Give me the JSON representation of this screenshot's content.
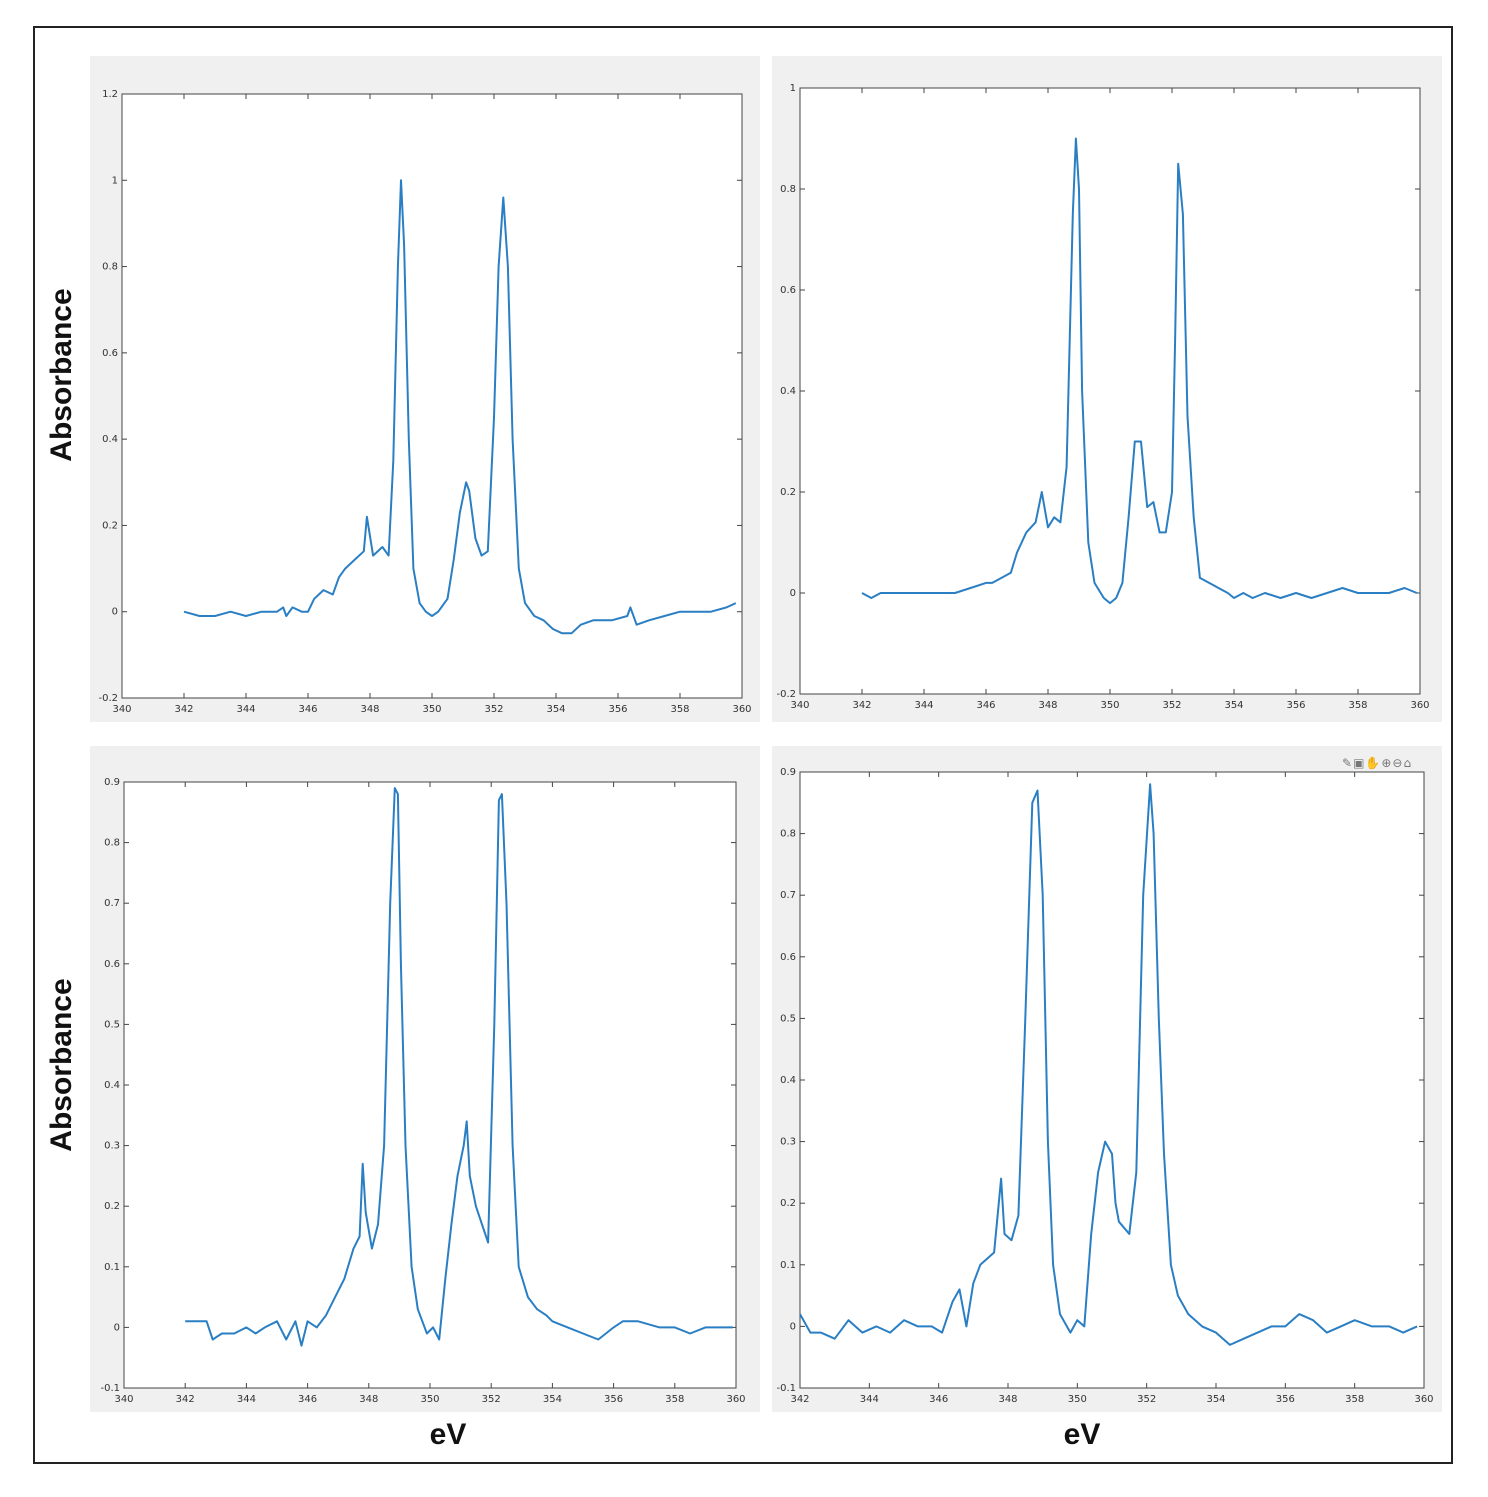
{
  "labels": {
    "y_top": "Absorbance",
    "y_bottom": "Absorbance",
    "x_left": "eV",
    "x_right": "eV"
  },
  "toolbar_icons": [
    "pencil-icon",
    "data-cursor-icon",
    "pan-hand-icon",
    "zoom-in-icon",
    "zoom-out-icon",
    "home-icon"
  ],
  "colors": {
    "line": "#2a7fc4",
    "panel_bg": "#f0f0f0",
    "axes_text": "#333333"
  },
  "chart_data": [
    {
      "type": "line",
      "xlim": [
        340,
        360
      ],
      "ylim": [
        -0.2,
        1.2
      ],
      "xticks": [
        "340",
        "342",
        "344",
        "346",
        "348",
        "350",
        "352",
        "354",
        "356",
        "358",
        "360"
      ],
      "yticks": [
        "-0.2",
        "0",
        "0.2",
        "0.4",
        "0.6",
        "0.8",
        "1",
        "1.2"
      ],
      "ytick_values": [
        -0.2,
        0,
        0.2,
        0.4,
        0.6,
        0.8,
        1,
        1.2
      ],
      "series": [
        {
          "x": [
            342,
            342.5,
            343,
            343.5,
            344,
            344.5,
            345,
            345.2,
            345.3,
            345.5,
            345.8,
            346,
            346.2,
            346.5,
            346.8,
            347,
            347.2,
            347.5,
            347.8,
            347.9,
            348.1,
            348.4,
            348.6,
            348.75,
            348.9,
            349,
            349.1,
            349.25,
            349.4,
            349.6,
            349.8,
            350,
            350.2,
            350.5,
            350.7,
            350.9,
            351.1,
            351.2,
            351.4,
            351.6,
            351.8,
            352,
            352.15,
            352.3,
            352.45,
            352.6,
            352.8,
            353,
            353.3,
            353.6,
            353.9,
            354.2,
            354.5,
            354.8,
            355.2,
            355.8,
            356.3,
            356.4,
            356.6,
            357,
            357.5,
            358,
            358.5,
            359,
            359.5,
            359.8
          ],
          "y": [
            0,
            -0.01,
            -0.01,
            0.0,
            -0.01,
            0.0,
            0.0,
            0.01,
            -0.01,
            0.01,
            0.0,
            0.0,
            0.03,
            0.05,
            0.04,
            0.08,
            0.1,
            0.12,
            0.14,
            0.22,
            0.13,
            0.15,
            0.13,
            0.35,
            0.8,
            1.0,
            0.85,
            0.4,
            0.1,
            0.02,
            0.0,
            -0.01,
            0.0,
            0.03,
            0.12,
            0.23,
            0.3,
            0.28,
            0.17,
            0.13,
            0.14,
            0.45,
            0.8,
            0.96,
            0.8,
            0.4,
            0.1,
            0.02,
            -0.01,
            -0.02,
            -0.04,
            -0.05,
            -0.05,
            -0.03,
            -0.02,
            -0.02,
            -0.01,
            0.01,
            -0.03,
            -0.02,
            -0.01,
            0.0,
            0.0,
            0.0,
            0.01,
            0.02
          ]
        }
      ]
    },
    {
      "type": "line",
      "xlim": [
        340,
        360
      ],
      "ylim": [
        -0.2,
        1
      ],
      "xticks": [
        "340",
        "342",
        "344",
        "346",
        "348",
        "350",
        "352",
        "354",
        "356",
        "358",
        "360"
      ],
      "yticks": [
        "-0.2",
        "0",
        "0.2",
        "0.4",
        "0.6",
        "0.8",
        "1"
      ],
      "ytick_values": [
        -0.2,
        0,
        0.2,
        0.4,
        0.6,
        0.8,
        1
      ],
      "series": [
        {
          "x": [
            342,
            342.3,
            342.6,
            343,
            343.5,
            344,
            344.5,
            345,
            345.5,
            346,
            346.2,
            346.5,
            346.8,
            347,
            347.3,
            347.6,
            347.8,
            348,
            348.2,
            348.4,
            348.6,
            348.8,
            348.9,
            349,
            349.1,
            349.3,
            349.5,
            349.8,
            350,
            350.2,
            350.4,
            350.6,
            350.8,
            351,
            351.2,
            351.4,
            351.6,
            351.8,
            352,
            352.1,
            352.2,
            352.35,
            352.5,
            352.7,
            352.9,
            353.2,
            353.5,
            353.8,
            354,
            354.3,
            354.6,
            355,
            355.5,
            356,
            356.5,
            357,
            357.5,
            358,
            358.5,
            359,
            359.5,
            359.9
          ],
          "y": [
            0,
            -0.01,
            0.0,
            0.0,
            0.0,
            0.0,
            0.0,
            0.0,
            0.01,
            0.02,
            0.02,
            0.03,
            0.04,
            0.08,
            0.12,
            0.14,
            0.2,
            0.13,
            0.15,
            0.14,
            0.25,
            0.75,
            0.9,
            0.8,
            0.4,
            0.1,
            0.02,
            -0.01,
            -0.02,
            -0.01,
            0.02,
            0.15,
            0.3,
            0.3,
            0.17,
            0.18,
            0.12,
            0.12,
            0.2,
            0.5,
            0.85,
            0.75,
            0.35,
            0.15,
            0.03,
            0.02,
            0.01,
            0.0,
            -0.01,
            0.0,
            -0.01,
            0.0,
            -0.01,
            0.0,
            -0.01,
            0.0,
            0.01,
            0.0,
            0.0,
            0.0,
            0.01,
            0.0
          ]
        }
      ]
    },
    {
      "type": "line",
      "xlim": [
        340,
        360
      ],
      "ylim": [
        -0.1,
        0.9
      ],
      "xticks": [
        "340",
        "342",
        "344",
        "346",
        "348",
        "350",
        "352",
        "354",
        "356",
        "358",
        "360"
      ],
      "yticks": [
        "-0.1",
        "0",
        "0.1",
        "0.2",
        "0.3",
        "0.4",
        "0.5",
        "0.6",
        "0.7",
        "0.8",
        "0.9"
      ],
      "ytick_values": [
        -0.1,
        0,
        0.1,
        0.2,
        0.3,
        0.4,
        0.5,
        0.6,
        0.7,
        0.8,
        0.9
      ],
      "series": [
        {
          "x": [
            342,
            342.3,
            342.7,
            342.9,
            343.2,
            343.6,
            344,
            344.3,
            344.6,
            345,
            345.3,
            345.6,
            345.8,
            346,
            346.3,
            346.6,
            346.9,
            347.2,
            347.5,
            347.7,
            347.8,
            347.9,
            348.1,
            348.3,
            348.5,
            348.7,
            348.85,
            348.95,
            349.05,
            349.2,
            349.4,
            349.6,
            349.9,
            350.1,
            350.3,
            350.5,
            350.7,
            350.9,
            351.1,
            351.2,
            351.3,
            351.5,
            351.7,
            351.9,
            352.1,
            352.25,
            352.35,
            352.5,
            352.7,
            352.9,
            353.2,
            353.5,
            353.8,
            354,
            354.5,
            355,
            355.5,
            356,
            356.3,
            356.8,
            357.5,
            358,
            358.5,
            359,
            359.5,
            359.9
          ],
          "y": [
            0.01,
            0.01,
            0.01,
            -0.02,
            -0.01,
            -0.01,
            0.0,
            -0.01,
            0.0,
            0.01,
            -0.02,
            0.01,
            -0.03,
            0.01,
            0.0,
            0.02,
            0.05,
            0.08,
            0.13,
            0.15,
            0.27,
            0.19,
            0.13,
            0.17,
            0.3,
            0.7,
            0.89,
            0.88,
            0.6,
            0.3,
            0.1,
            0.03,
            -0.01,
            0.0,
            -0.02,
            0.08,
            0.17,
            0.25,
            0.3,
            0.34,
            0.25,
            0.2,
            0.17,
            0.14,
            0.5,
            0.87,
            0.88,
            0.7,
            0.3,
            0.1,
            0.05,
            0.03,
            0.02,
            0.01,
            0.0,
            -0.01,
            -0.02,
            0.0,
            0.01,
            0.01,
            0.0,
            0.0,
            -0.01,
            0.0,
            0.0,
            0.0
          ]
        }
      ]
    },
    {
      "type": "line",
      "xlim": [
        342,
        360
      ],
      "ylim": [
        -0.1,
        0.9
      ],
      "xticks": [
        "342",
        "344",
        "346",
        "348",
        "350",
        "352",
        "354",
        "356",
        "358",
        "360"
      ],
      "yticks": [
        "-0.1",
        "0",
        "0.1",
        "0.2",
        "0.3",
        "0.4",
        "0.5",
        "0.6",
        "0.7",
        "0.8",
        "0.9"
      ],
      "ytick_values": [
        -0.1,
        0,
        0.1,
        0.2,
        0.3,
        0.4,
        0.5,
        0.6,
        0.7,
        0.8,
        0.9
      ],
      "series": [
        {
          "x": [
            342,
            342.3,
            342.6,
            343,
            343.4,
            343.8,
            344.2,
            344.6,
            345,
            345.4,
            345.8,
            346.1,
            346.4,
            346.6,
            346.8,
            347,
            347.2,
            347.4,
            347.6,
            347.8,
            347.9,
            348.1,
            348.3,
            348.5,
            348.7,
            348.85,
            349,
            349.15,
            349.3,
            349.5,
            349.8,
            350,
            350.2,
            350.4,
            350.6,
            350.8,
            351,
            351.1,
            351.2,
            351.35,
            351.5,
            351.7,
            351.9,
            352.1,
            352.2,
            352.35,
            352.5,
            352.7,
            352.9,
            353.2,
            353.6,
            354,
            354.4,
            354.8,
            355.2,
            355.6,
            356,
            356.4,
            356.8,
            357.2,
            357.6,
            358,
            358.5,
            359,
            359.4,
            359.8
          ],
          "y": [
            0.02,
            -0.01,
            -0.01,
            -0.02,
            0.01,
            -0.01,
            0.0,
            -0.01,
            0.01,
            0.0,
            0.0,
            -0.01,
            0.04,
            0.06,
            0.0,
            0.07,
            0.1,
            0.11,
            0.12,
            0.24,
            0.15,
            0.14,
            0.18,
            0.5,
            0.85,
            0.87,
            0.7,
            0.3,
            0.1,
            0.02,
            -0.01,
            0.01,
            0.0,
            0.15,
            0.25,
            0.3,
            0.28,
            0.2,
            0.17,
            0.16,
            0.15,
            0.25,
            0.7,
            0.88,
            0.8,
            0.5,
            0.28,
            0.1,
            0.05,
            0.02,
            0.0,
            -0.01,
            -0.03,
            -0.02,
            -0.01,
            0.0,
            0.0,
            0.02,
            0.01,
            -0.01,
            0.0,
            0.01,
            0.0,
            0.0,
            -0.01,
            0.0
          ]
        }
      ]
    }
  ]
}
